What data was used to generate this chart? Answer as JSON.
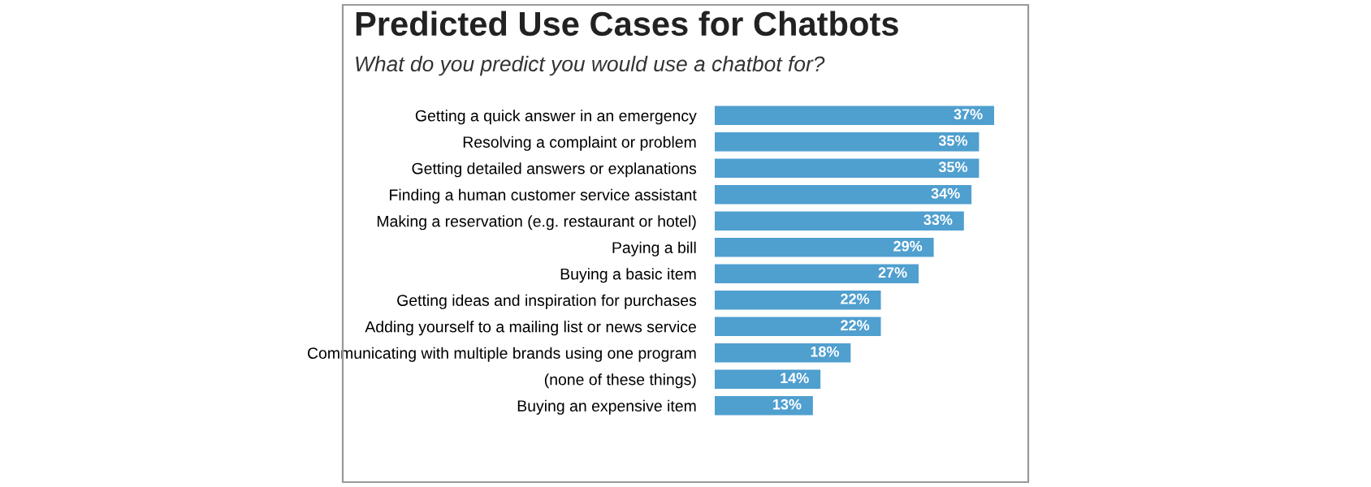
{
  "chart_data": {
    "type": "bar",
    "orientation": "horizontal",
    "title": "Predicted Use Cases for Chatbots",
    "subtitle": "What do you predict you would use a chatbot for?",
    "categories": [
      "Getting a quick answer in an emergency",
      "Resolving a complaint or problem",
      "Getting detailed answers or explanations",
      "Finding a human customer service assistant",
      "Making a reservation (e.g. restaurant or hotel)",
      "Paying a bill",
      "Buying a basic item",
      "Getting ideas and inspiration for purchases",
      "Adding yourself to a mailing list or news service",
      "Communicating with multiple brands using one program",
      "(none of these things)",
      "Buying an expensive item"
    ],
    "values": [
      37,
      35,
      35,
      34,
      33,
      29,
      27,
      22,
      22,
      18,
      14,
      13
    ],
    "value_labels": [
      "37%",
      "35%",
      "35%",
      "34%",
      "33%",
      "29%",
      "27%",
      "22%",
      "22%",
      "18%",
      "14%",
      "13%"
    ],
    "color": "#4f9fcf",
    "grid": false,
    "legend": false
  }
}
